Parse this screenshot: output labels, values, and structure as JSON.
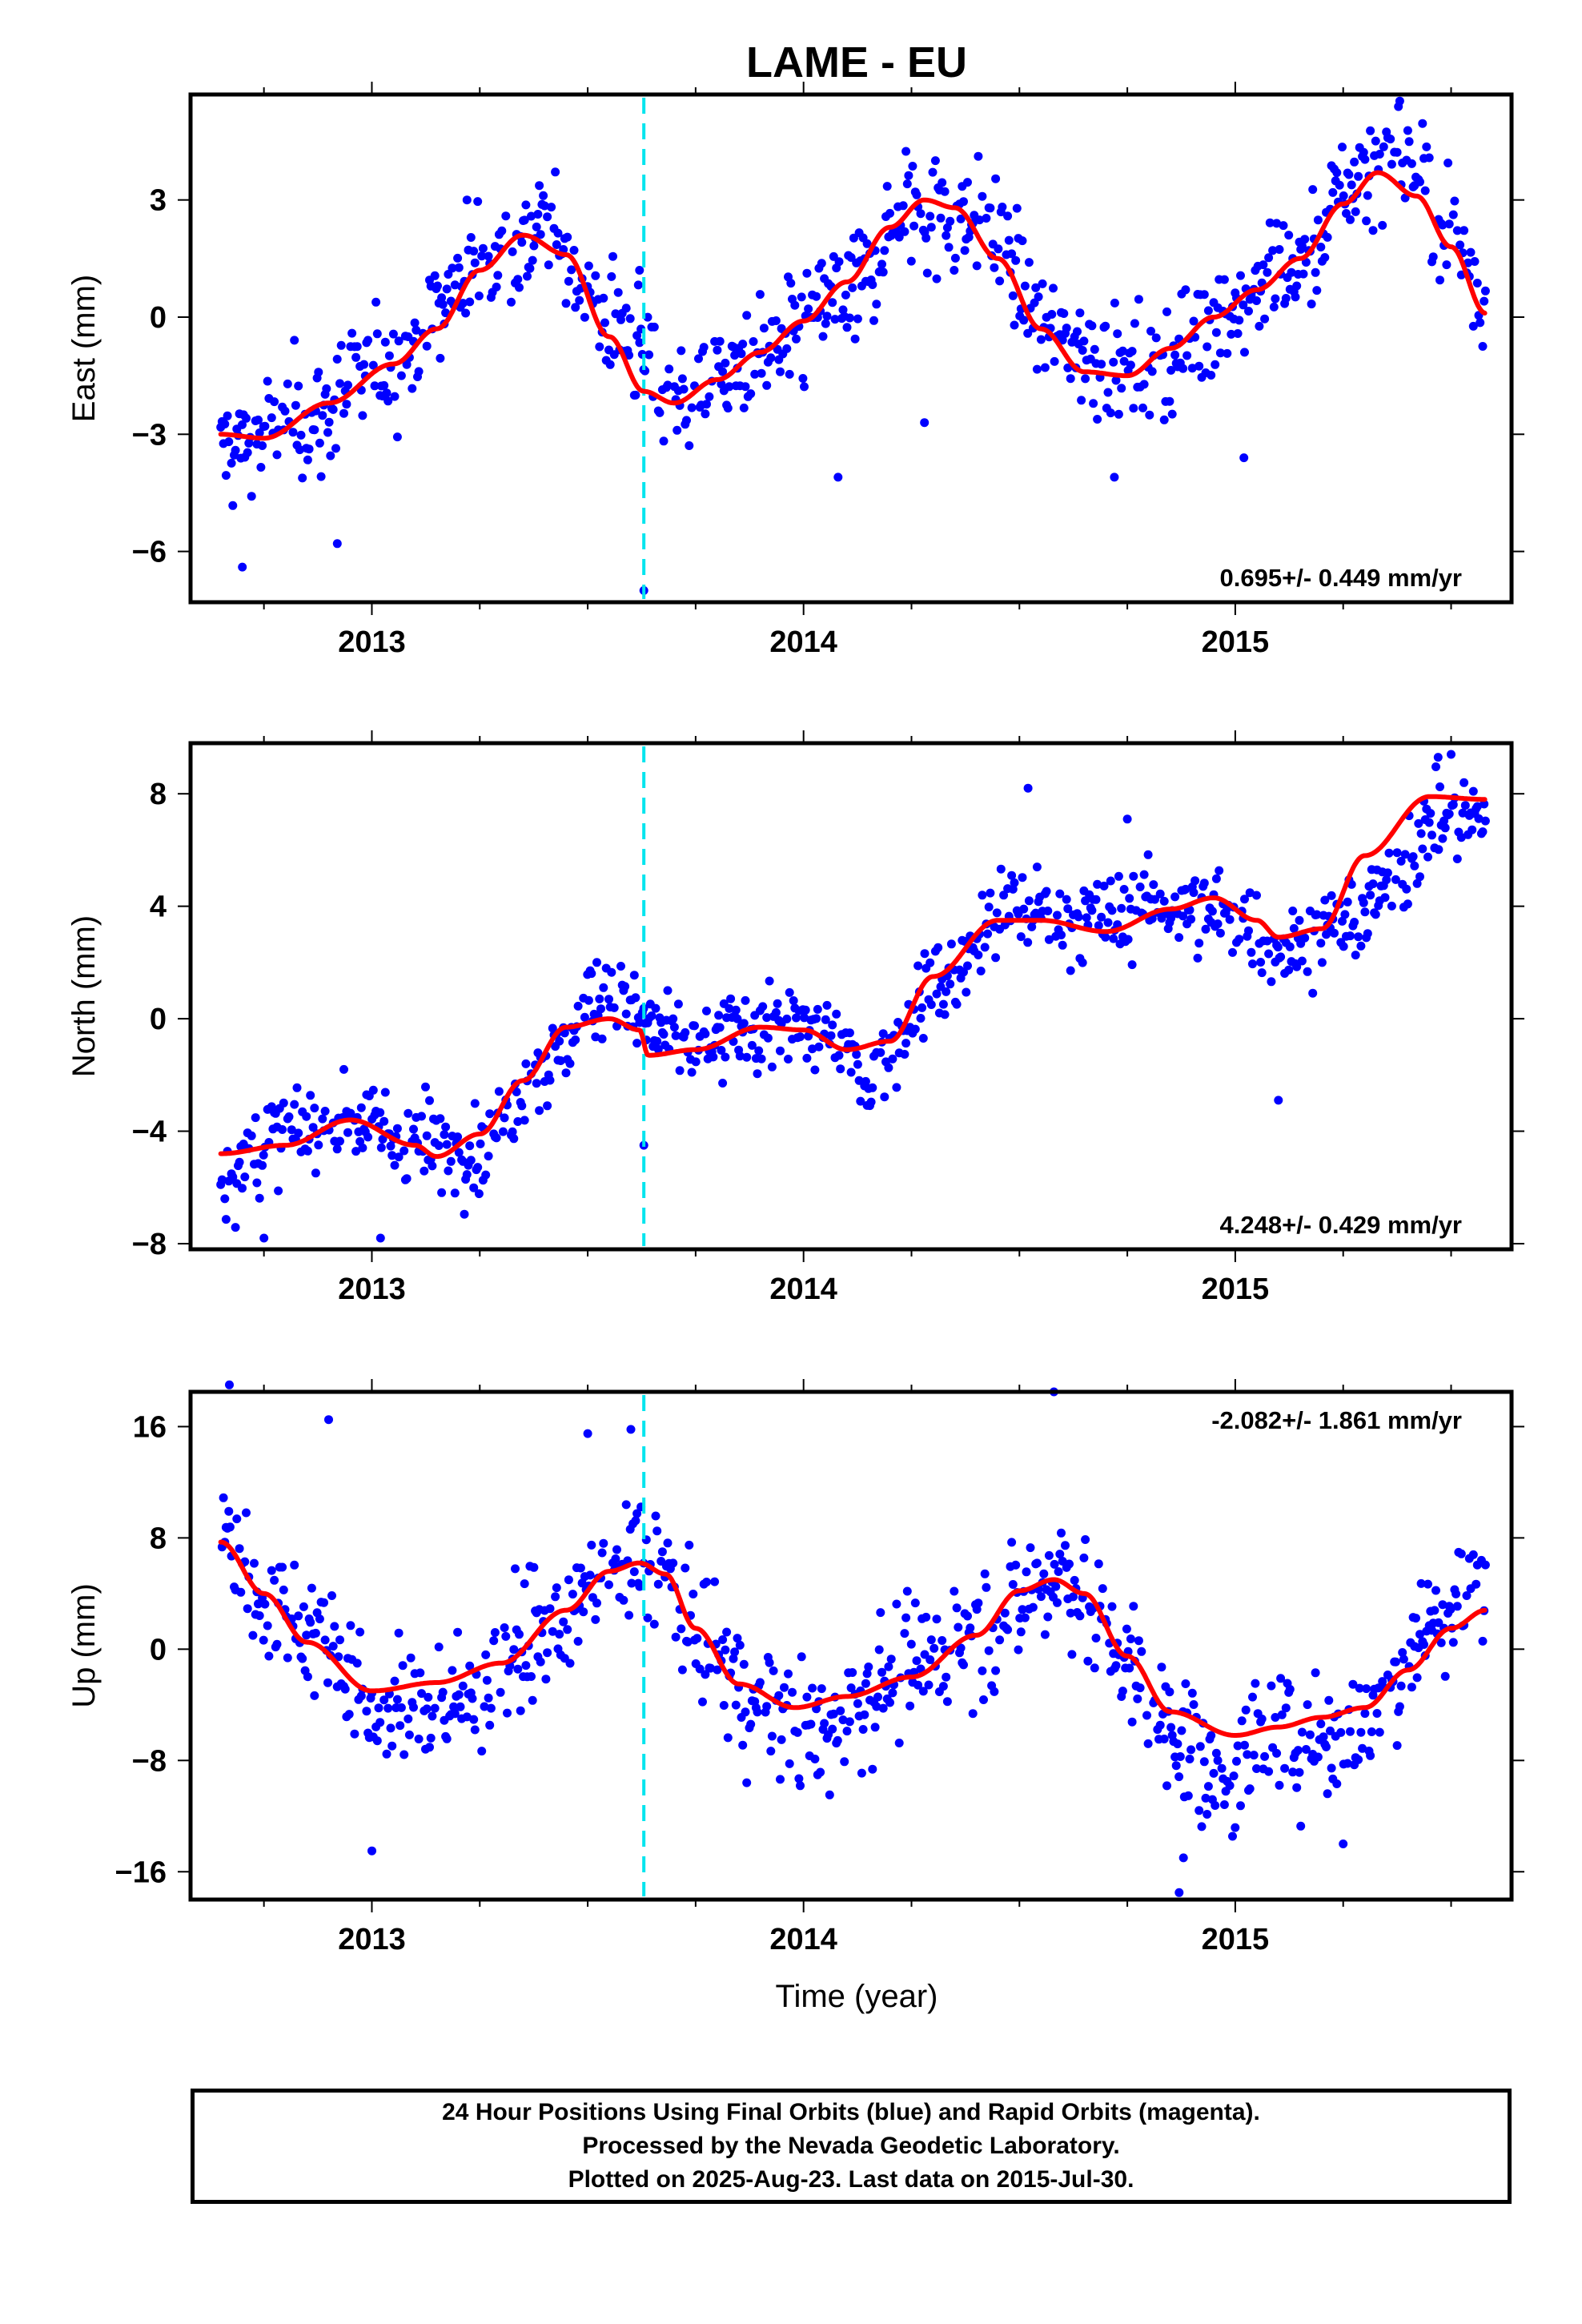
{
  "chart_data": {
    "title": "LAME - EU",
    "type": "scatter",
    "xlabel": "Time (year)",
    "xlim": [
      2012.58,
      2015.64
    ],
    "xticks": [
      2013,
      2014,
      2015
    ],
    "event_line_x": 2013.63,
    "colors": {
      "points": "#0000ff",
      "fit": "#ff0000",
      "event_line": "#00e5ee",
      "frame": "#000000"
    },
    "footer": [
      "24 Hour Positions Using Final Orbits (blue) and Rapid Orbits (magenta).",
      "Processed by the Nevada Geodetic Laboratory.",
      "Plotted on 2025-Aug-23. Last data on 2015-Jul-30."
    ],
    "panels": [
      {
        "ylabel": "East (mm)",
        "ylim": [
          -7.3,
          5.7
        ],
        "yticks": [
          -6,
          -3,
          0,
          3
        ],
        "rate": "0.695+/- 0.449 mm/yr",
        "rate_position": "bottom-right",
        "fit_x": [
          2012.65,
          2012.75,
          2012.9,
          2013.05,
          2013.15,
          2013.25,
          2013.35,
          2013.45,
          2013.55,
          2013.63,
          2013.7,
          2013.8,
          2013.9,
          2014.0,
          2014.1,
          2014.2,
          2014.28,
          2014.35,
          2014.45,
          2014.55,
          2014.65,
          2014.75,
          2014.85,
          2014.95,
          2015.05,
          2015.15,
          2015.25,
          2015.33,
          2015.42,
          2015.5,
          2015.58
        ],
        "fit_y": [
          -3.0,
          -3.1,
          -2.2,
          -1.2,
          -0.3,
          1.2,
          2.1,
          1.6,
          -0.5,
          -1.9,
          -2.2,
          -1.6,
          -0.9,
          -0.1,
          0.9,
          2.3,
          3.0,
          2.8,
          1.5,
          -0.3,
          -1.4,
          -1.5,
          -0.8,
          0.0,
          0.7,
          1.5,
          2.9,
          3.7,
          3.1,
          1.8,
          0.1
        ],
        "anchors_x": [
          2012.65,
          2012.85,
          2013.05,
          2013.25,
          2013.4,
          2013.55,
          2013.7,
          2013.9,
          2014.1,
          2014.25,
          2014.4,
          2014.6,
          2014.8,
          2015.0,
          2015.15,
          2015.28,
          2015.38,
          2015.5,
          2015.58
        ],
        "anchors_y": [
          -3.3,
          -2.6,
          -1.1,
          1.4,
          2.2,
          0.0,
          -2.1,
          -1.1,
          0.6,
          2.8,
          2.5,
          -0.6,
          -1.4,
          0.3,
          1.4,
          3.6,
          4.3,
          2.2,
          0.4
        ],
        "scatter": 1.15,
        "outliers_x": [
          2012.7,
          2012.92,
          2013.62,
          2013.63,
          2014.08,
          2014.28,
          2014.72,
          2015.02
        ],
        "outliers_y": [
          -6.4,
          -5.8,
          1.2,
          -7.0,
          -4.1,
          -2.7,
          -4.1,
          -3.6
        ]
      },
      {
        "ylabel": "North (mm)",
        "ylim": [
          -8.2,
          9.8
        ],
        "yticks": [
          -8,
          -4,
          0,
          4,
          8
        ],
        "rate": "4.248+/- 0.429 mm/yr",
        "rate_position": "bottom-right",
        "fit_x": [
          2012.65,
          2012.8,
          2012.95,
          2013.1,
          2013.15,
          2013.25,
          2013.35,
          2013.45,
          2013.55,
          2013.62,
          2013.64,
          2013.75,
          2013.9,
          2014.0,
          2014.1,
          2014.2,
          2014.3,
          2014.45,
          2014.55,
          2014.7,
          2014.85,
          2014.95,
          2015.05,
          2015.1,
          2015.2,
          2015.3,
          2015.45,
          2015.58
        ],
        "fit_y": [
          -4.8,
          -4.5,
          -3.6,
          -4.5,
          -4.9,
          -4.1,
          -2.2,
          -0.3,
          0.0,
          -0.4,
          -1.3,
          -1.1,
          -0.3,
          -0.4,
          -1.1,
          -0.8,
          1.5,
          3.5,
          3.5,
          3.1,
          3.9,
          4.3,
          3.5,
          2.9,
          3.2,
          5.8,
          7.9,
          7.8
        ],
        "anchors_x": [
          2012.65,
          2012.8,
          2012.95,
          2013.1,
          2013.25,
          2013.4,
          2013.55,
          2013.63,
          2013.75,
          2013.9,
          2014.05,
          2014.15,
          2014.3,
          2014.5,
          2014.65,
          2014.85,
          2015.0,
          2015.1,
          2015.25,
          2015.5,
          2015.58
        ],
        "anchors_y": [
          -5.5,
          -4.2,
          -3.5,
          -4.4,
          -4.5,
          -1.6,
          1.2,
          -0.2,
          -1.0,
          -0.2,
          -0.6,
          -2.0,
          1.2,
          4.0,
          3.5,
          4.1,
          3.6,
          2.5,
          3.4,
          7.2,
          7.3
        ],
        "scatter": 1.2,
        "outliers_x": [
          2012.75,
          2013.02,
          2013.63,
          2014.52,
          2014.75,
          2015.1,
          2015.47,
          2015.5
        ],
        "outliers_y": [
          -7.8,
          -7.8,
          -4.5,
          8.2,
          7.1,
          -2.9,
          9.3,
          9.4
        ]
      },
      {
        "ylabel": "Up (mm)",
        "ylim": [
          -18.0,
          18.5
        ],
        "yticks": [
          -16,
          -8,
          0,
          8,
          16
        ],
        "rate": "-2.082+/- 1.861 mm/yr",
        "rate_position": "top-right",
        "fit_x": [
          2012.65,
          2012.75,
          2012.85,
          2013.0,
          2013.15,
          2013.3,
          2013.45,
          2013.55,
          2013.62,
          2013.68,
          2013.75,
          2013.85,
          2013.98,
          2014.1,
          2014.25,
          2014.4,
          2014.5,
          2014.58,
          2014.65,
          2014.75,
          2014.85,
          2015.0,
          2015.1,
          2015.2,
          2015.3,
          2015.4,
          2015.5,
          2015.58
        ],
        "fit_y": [
          7.7,
          4.0,
          0.5,
          -3.0,
          -2.4,
          -1.0,
          2.8,
          5.6,
          6.2,
          5.4,
          1.5,
          -2.5,
          -4.2,
          -3.4,
          -2.0,
          1.0,
          4.2,
          5.0,
          4.0,
          -0.5,
          -4.5,
          -6.2,
          -5.6,
          -4.9,
          -4.2,
          -1.5,
          1.5,
          2.8
        ],
        "anchors_x": [
          2012.65,
          2012.75,
          2012.9,
          2013.0,
          2013.2,
          2013.4,
          2013.55,
          2013.65,
          2013.75,
          2013.9,
          2014.0,
          2014.2,
          2014.45,
          2014.6,
          2014.7,
          2014.85,
          2014.95,
          2015.1,
          2015.25,
          2015.5,
          2015.58
        ],
        "anchors_y": [
          9.0,
          3.5,
          1.0,
          -4.5,
          -4.0,
          1.0,
          5.5,
          6.5,
          1.0,
          -4.0,
          -6.0,
          -2.0,
          2.0,
          6.0,
          1.0,
          -5.5,
          -9.0,
          -6.5,
          -6.0,
          3.0,
          5.0
        ],
        "scatter": 3.6,
        "outliers_x": [
          2012.67,
          2012.9,
          2013.0,
          2013.5,
          2013.6,
          2014.58,
          2014.87,
          2014.88,
          2015.25
        ],
        "outliers_y": [
          19.0,
          16.5,
          -14.5,
          15.5,
          15.8,
          18.5,
          -17.5,
          -15.0,
          -14.0
        ]
      }
    ]
  }
}
